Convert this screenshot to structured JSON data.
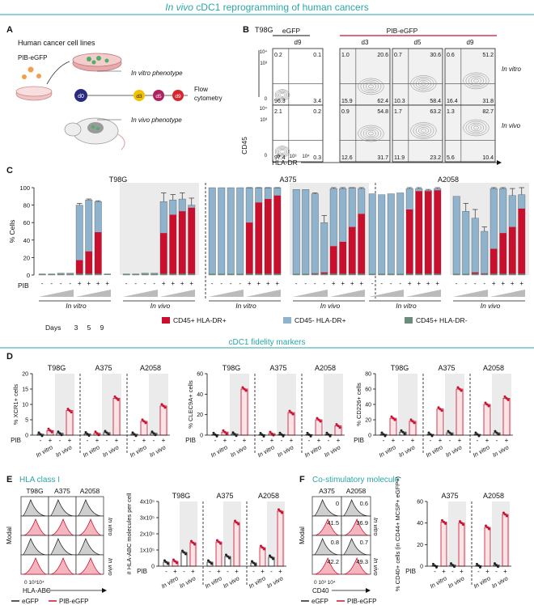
{
  "header": {
    "title_italic": "In vivo",
    "title_rest": " cDC1 reprogramming of human cancers"
  },
  "panels": {
    "a": "A",
    "b": "B",
    "c": "C",
    "d": "D",
    "e": "E",
    "f": "F"
  },
  "panel_a": {
    "title": "Human cancer cell lines",
    "vector": "PIB-eGFP",
    "d0": "d0",
    "days": [
      "d3",
      "d5",
      "d9"
    ],
    "in_vitro": "In vitro phenotype",
    "in_vivo": "In vivo phenotype",
    "flow1": "Flow",
    "flow2": "cytometry"
  },
  "panel_b": {
    "cell_line": "T98G",
    "egfp": "eGFP",
    "pib": "PIB-eGFP",
    "cols": [
      "d9",
      "d3",
      "d5",
      "d9"
    ],
    "row_labels": [
      "In vitro",
      "In vivo"
    ],
    "ylabel": "CD45",
    "xlabel": "HLA-DR",
    "ticks_y": [
      "10⁴",
      "10³",
      "0"
    ],
    "ticks_x": [
      "0",
      "10³",
      "10⁴"
    ],
    "quadrants": [
      [
        [
          "0.2",
          "0.1",
          "96.3",
          "3.4"
        ],
        [
          "1.0",
          "20.6",
          "15.9",
          "62.4"
        ],
        [
          "0.7",
          "30.6",
          "10.3",
          "58.4"
        ],
        [
          "0.6",
          "51.2",
          "16.4",
          "31.8"
        ]
      ],
      [
        [
          "2.1",
          "0.2",
          "97.4",
          "0.3"
        ],
        [
          "0.9",
          "54.8",
          "12.6",
          "31.7"
        ],
        [
          "1.7",
          "63.2",
          "11.9",
          "23.2"
        ],
        [
          "1.3",
          "82.7",
          "5.6",
          "10.4"
        ]
      ]
    ]
  },
  "chart_data": [
    {
      "type": "bar",
      "panel": "C",
      "ylabel": "% Cells",
      "ylim": [
        0,
        100
      ],
      "yticks": [
        "0",
        "20",
        "40",
        "60",
        "80",
        "100"
      ],
      "row_label": "PIB",
      "signs": [
        "-",
        "-",
        "-",
        "-",
        "+",
        "+",
        "+",
        "+"
      ],
      "days_label": "Days",
      "days": [
        "3",
        "5",
        "9"
      ],
      "groups_label": [
        "In vitro",
        "In vivo"
      ],
      "legend": [
        "CD45+ HLA-DR+",
        "CD45- HLA-DR+",
        "CD45+ HLA-DR-"
      ],
      "colors": [
        "#c8102e",
        "#8fb3cc",
        "#6b8c7a"
      ],
      "cell_lines": [
        {
          "name": "T98G",
          "red": [
            0,
            0,
            0,
            0,
            17,
            27,
            49,
            0,
            1,
            1,
            1,
            1,
            48,
            69,
            73,
            77
          ],
          "blue": [
            1,
            1,
            2,
            2,
            80,
            86,
            84,
            0,
            1,
            1,
            2,
            2,
            84,
            86,
            87,
            80
          ],
          "err": [
            0,
            0,
            0,
            0,
            2,
            1,
            1,
            0,
            0,
            0,
            0,
            0,
            10,
            6,
            7,
            8
          ]
        },
        {
          "name": "A375",
          "red": [
            0,
            0,
            0,
            0,
            60,
            83,
            87,
            91,
            1,
            1,
            2,
            3,
            33,
            38,
            55,
            70
          ],
          "blue": [
            100,
            100,
            100,
            100,
            100,
            100,
            100,
            100,
            98,
            98,
            93,
            60,
            99,
            99,
            100,
            99
          ],
          "err": [
            0,
            0,
            0,
            0,
            1,
            1,
            1,
            1,
            0,
            0,
            1,
            8,
            2,
            5,
            2,
            10
          ]
        },
        {
          "name": "A2058",
          "red": [
            0,
            0,
            0,
            0,
            75,
            96,
            96,
            97,
            1,
            1,
            3,
            2,
            30,
            48,
            55,
            76
          ],
          "blue": [
            93,
            92,
            93,
            94,
            99,
            99,
            97,
            99,
            90,
            73,
            65,
            50,
            99,
            99,
            91,
            92
          ],
          "err": [
            0,
            0,
            0,
            0,
            1,
            1,
            1,
            1,
            0,
            9,
            10,
            5,
            1,
            2,
            8,
            8
          ]
        }
      ]
    },
    {
      "type": "bar",
      "panel": "D-XCR1",
      "ylabel": "% XCR1+ cells",
      "ylim": [
        0,
        20
      ],
      "yticks": [
        "0",
        "5",
        "10",
        "15",
        "20"
      ],
      "cell_lines": [
        "T98G",
        "A375",
        "A2058"
      ],
      "values": [
        [
          0.3,
          1.5,
          0.6,
          8
        ],
        [
          0.4,
          0.6,
          0.8,
          12
        ],
        [
          0.3,
          4.5,
          0.6,
          9.5
        ]
      ]
    },
    {
      "type": "bar",
      "panel": "D-CLEC9A",
      "ylabel": "% CLEC9A+ cells",
      "ylim": [
        0,
        60
      ],
      "yticks": [
        "0",
        "20",
        "40",
        "60"
      ],
      "cell_lines": [
        "T98G",
        "A375",
        "A2058"
      ],
      "values": [
        [
          0.5,
          3,
          1,
          45
        ],
        [
          0.4,
          1.5,
          0.6,
          22
        ],
        [
          0.5,
          15,
          0.6,
          9
        ]
      ]
    },
    {
      "type": "bar",
      "panel": "D-CD226",
      "ylabel": "% CD226+ cells",
      "ylim": [
        0,
        80
      ],
      "yticks": [
        "0",
        "20",
        "40",
        "60",
        "80"
      ],
      "cell_lines": [
        "T98G",
        "A375",
        "A2058"
      ],
      "values": [
        [
          1,
          22,
          4,
          18
        ],
        [
          1,
          34,
          3,
          60
        ],
        [
          1,
          40,
          3,
          48
        ]
      ]
    },
    {
      "type": "bar",
      "panel": "E",
      "ylabel": "# HLA-ABC molecules per cell",
      "ylim": [
        0,
        400000
      ],
      "yticks": [
        "0",
        "1x10⁵",
        "2x10⁵",
        "3x10⁵",
        "4x10⁵"
      ],
      "cell_lines": [
        "T98G",
        "A375",
        "A2058"
      ],
      "values": [
        [
          25000,
          30000,
          85000,
          145000
        ],
        [
          25000,
          150000,
          60000,
          270000
        ],
        [
          20000,
          115000,
          55000,
          340000
        ]
      ]
    },
    {
      "type": "bar",
      "panel": "F",
      "ylabel": "% CD40+ cells (in CD44+ MCSP+ eGFP+)",
      "ylim": [
        0,
        60
      ],
      "yticks": [
        "0",
        "20",
        "40",
        "60"
      ],
      "cell_lines": [
        "A375",
        "A2058"
      ],
      "values": [
        [
          0.5,
          41,
          1,
          40
        ],
        [
          0.5,
          36,
          1,
          48
        ]
      ]
    }
  ],
  "panel_d": {
    "title": "cDC1 fidelity markers",
    "pib": "PIB",
    "signs": [
      "-",
      "+",
      "-",
      "+"
    ],
    "in_vitro": "In vitro",
    "in_vivo": "In vivo"
  },
  "panel_e": {
    "title": "HLA class I",
    "cell_lines": [
      "T98G",
      "A375",
      "A2058"
    ],
    "ylabel": "Modal",
    "xlabel": "HLA-ABC",
    "ticks_x": "0 10³10⁴",
    "in_vitro": "In vitro",
    "in_vivo": "In vivo",
    "legend_egfp": "eGFP",
    "legend_pib": "PIB-eGFP"
  },
  "panel_f": {
    "title": "Co-stimulatory molecule",
    "cell_lines": [
      "A375",
      "A2058"
    ],
    "ylabel": "Modal",
    "xlabel": "CD40",
    "ticks_x": "0 10³ 10⁴",
    "hist_values": [
      [
        "0",
        "0.6"
      ],
      [
        "41.5",
        "36.9"
      ],
      [
        "0.8",
        "0.7"
      ],
      [
        "42.2",
        "49.3"
      ]
    ],
    "in_vitro": "In vitro",
    "in_vivo": "In vivo",
    "legend_egfp": "eGFP",
    "legend_pib": "PIB-eGFP"
  }
}
